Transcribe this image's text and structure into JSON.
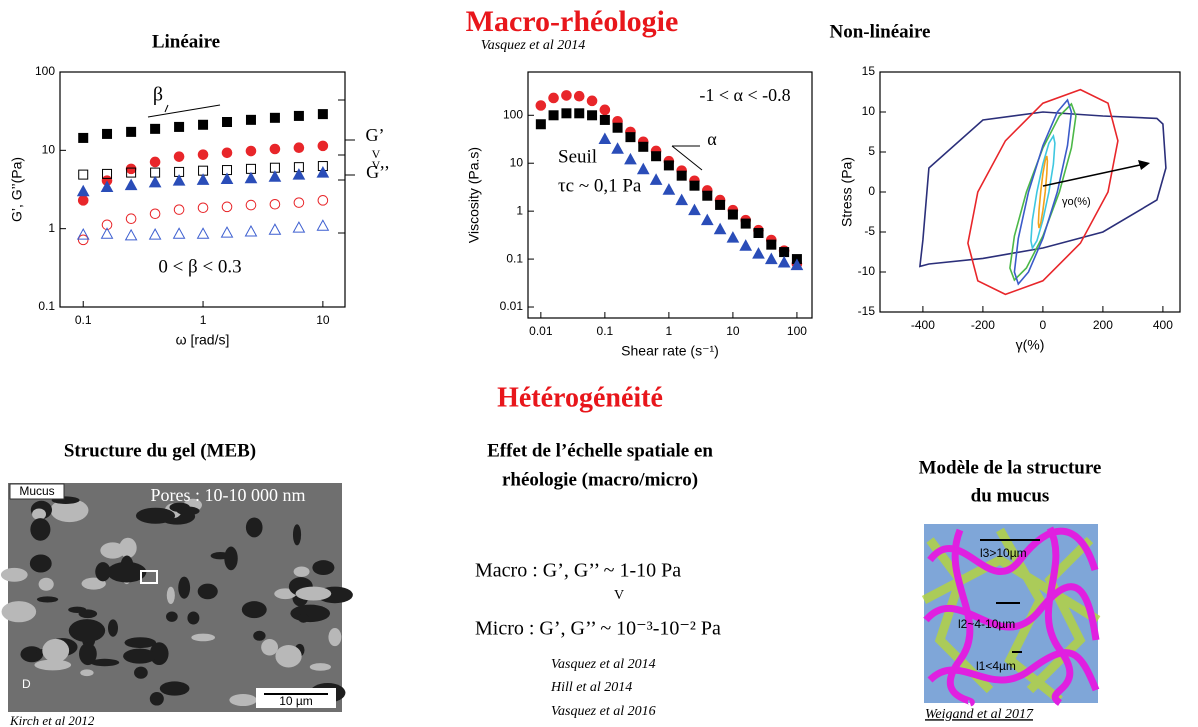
{
  "sections": [
    "Macro-rhéologie",
    "Hétérogénéité"
  ],
  "chart_data": [
    {
      "type": "scatter",
      "title": "Linéaire",
      "x_label": "ω [rad/s]",
      "y_label": "G’, G’’(Pa)",
      "log_x": true,
      "log_y": true,
      "xlim": [
        0.064,
        15.3
      ],
      "ylim": [
        0.1,
        100
      ],
      "xticks": [
        0.1,
        1,
        10
      ],
      "yticks": [
        0.1,
        1,
        10,
        100
      ],
      "x": [
        0.1,
        0.158,
        0.251,
        0.398,
        0.631,
        1,
        1.585,
        2.512,
        3.98,
        6.31,
        10
      ],
      "series": [
        {
          "color": "#000000",
          "marker": "square",
          "filled": true,
          "values": [
            14.4,
            16.2,
            17.2,
            18.8,
            19.9,
            21.2,
            23,
            24.5,
            26,
            27.5,
            29
          ]
        },
        {
          "color": "#e8262a",
          "marker": "circle",
          "filled": true,
          "values": [
            2.3,
            4.1,
            5.8,
            7.1,
            8.3,
            8.8,
            9.3,
            9.8,
            10.4,
            10.8,
            11.4
          ]
        },
        {
          "color": "#000000",
          "marker": "square",
          "filled": false,
          "values": [
            4.9,
            5,
            5.2,
            5.2,
            5.3,
            5.5,
            5.6,
            5.8,
            6,
            6.1,
            6.3
          ]
        },
        {
          "color": "#2a4db8",
          "marker": "triangle",
          "filled": true,
          "values": [
            3,
            3.4,
            3.6,
            3.9,
            4.1,
            4.2,
            4.3,
            4.4,
            4.6,
            4.9,
            5.2
          ]
        },
        {
          "color": "#e8262a",
          "marker": "circle",
          "filled": false,
          "values": [
            0.72,
            1.12,
            1.34,
            1.55,
            1.75,
            1.85,
            1.9,
            2,
            2.05,
            2.15,
            2.3
          ]
        },
        {
          "color": "#3d5fd0",
          "marker": "triangle",
          "filled": false,
          "values": [
            0.84,
            0.86,
            0.82,
            0.84,
            0.86,
            0.86,
            0.89,
            0.92,
            0.97,
            1.03,
            1.09
          ]
        }
      ],
      "annotations": [
        "β",
        "G’",
        "V",
        "V",
        "G’’",
        "0 < β < 0.3"
      ]
    },
    {
      "type": "scatter",
      "subtitle": "Vasquez et al 2014",
      "x_label": "Shear rate (s⁻¹)",
      "y_label": "Viscosity (Pa.s)",
      "log_x": true,
      "log_y": true,
      "xlim": [
        0.0063,
        172
      ],
      "ylim": [
        0.0059,
        800
      ],
      "xticks": [
        0.01,
        0.1,
        1,
        10,
        100
      ],
      "yticks": [
        0.01,
        0.1,
        1,
        10,
        100
      ],
      "x": [
        0.01,
        0.0158,
        0.0251,
        0.0398,
        0.0631,
        0.1,
        0.158,
        0.251,
        0.398,
        0.631,
        1,
        1.585,
        2.512,
        3.98,
        6.31,
        10,
        15.85,
        25.1,
        39.8,
        63.1,
        100
      ],
      "series": [
        {
          "color": "#e8262a",
          "marker": "circle",
          "filled": true,
          "values": [
            160,
            230,
            260,
            250,
            200,
            130,
            75,
            45,
            28,
            18,
            11,
            7,
            4.3,
            2.7,
            1.7,
            1.05,
            0.65,
            0.4,
            0.25,
            0.15,
            0.08
          ]
        },
        {
          "color": "#000000",
          "marker": "square",
          "filled": true,
          "values": [
            65,
            100,
            110,
            110,
            100,
            80,
            55,
            35,
            22,
            14,
            9,
            5.5,
            3.4,
            2.1,
            1.35,
            0.85,
            0.55,
            0.35,
            0.2,
            0.14,
            0.1
          ]
        },
        {
          "color": "#2a4db8",
          "marker": "triangle",
          "filled": true,
          "values": [
            null,
            null,
            null,
            null,
            null,
            32,
            20,
            12,
            7.5,
            4.5,
            2.8,
            1.7,
            1.05,
            0.65,
            0.42,
            0.28,
            0.19,
            0.13,
            0.1,
            0.085,
            0.075
          ]
        }
      ],
      "annotations": [
        "-1 < α < -0.8",
        "α",
        "Seuil",
        "τc ~ 0,1 Pa"
      ]
    },
    {
      "type": "line",
      "title": "Non-linéaire",
      "x_label": "γ(%)",
      "y_label": "Stress (Pa)",
      "xlim": [
        -543,
        457
      ],
      "ylim": [
        -15,
        15
      ],
      "xticks": [
        -400,
        -200,
        0,
        200,
        400
      ],
      "yticks": [
        -15,
        -10,
        -5,
        0,
        5,
        10,
        15
      ],
      "series": [
        {
          "color": "#2b2f7a",
          "x": [
            400,
            410,
            380,
            200,
            0,
            -200,
            -380,
            -410,
            -400,
            -380,
            -200,
            0,
            200,
            380
          ],
          "values": [
            8.5,
            3,
            -1,
            -5,
            -7,
            -8.3,
            -9,
            -9.3,
            -6,
            3,
            9,
            10,
            9.5,
            9.2
          ]
        },
        {
          "color": "#e8262a",
          "x": [
            250,
            217,
            125,
            0,
            -125,
            -217,
            -250,
            -217,
            -125,
            0,
            125,
            217
          ],
          "values": [
            6.4,
            11.1,
            12.8,
            11.1,
            6.4,
            0,
            -6.4,
            -11.1,
            -12.8,
            -11.1,
            -6.4,
            0
          ]
        },
        {
          "color": "#4cb848",
          "x": [
            110,
            95,
            55,
            0,
            -55,
            -95,
            -110,
            -95,
            -55,
            0,
            55,
            95
          ],
          "values": [
            9.5,
            11,
            9.5,
            5.5,
            0,
            -5.5,
            -9.5,
            -11,
            -9.5,
            -5.5,
            0,
            5.5
          ]
        },
        {
          "color": "#3b5bc9",
          "x": [
            95,
            82,
            48,
            0,
            -48,
            -82,
            -95,
            -82,
            -48,
            0,
            48,
            82
          ],
          "values": [
            10,
            11.5,
            10,
            5.8,
            0,
            -5.8,
            -10,
            -11.5,
            -10,
            -5.8,
            0,
            5.8
          ]
        },
        {
          "color": "#3ec7e0",
          "x": [
            40,
            35,
            20,
            0,
            -20,
            -35,
            -40,
            -35,
            -20,
            0,
            20,
            35
          ],
          "values": [
            6.1,
            7,
            6.1,
            3.5,
            0,
            -3.5,
            -6.1,
            -7,
            -6.1,
            -3.5,
            0,
            3.5
          ]
        },
        {
          "color": "#f2a31b",
          "x": [
            15,
            13,
            7.5,
            0,
            -7.5,
            -13,
            -15,
            -13,
            -7.5,
            0,
            7.5,
            13
          ],
          "values": [
            3.9,
            4.5,
            3.9,
            2.3,
            0,
            -2.3,
            -3.9,
            -4.5,
            -3.9,
            -2.3,
            0,
            2.3
          ]
        }
      ],
      "annotations": [
        "γo(%)"
      ]
    }
  ],
  "bottom": {
    "sem": {
      "title": "Structure du gel (MEB)",
      "label": "Mucus",
      "pores": "Pores : 10-10 000 nm",
      "panel": "D",
      "scale": "10 µm",
      "reference": "Kirch et al 2012"
    },
    "scale": {
      "title": [
        "Effet de l’échelle spatiale en",
        "rhéologie (macro/micro)"
      ],
      "macro": "Macro : G’, G’’ ~ 1-10 Pa",
      "compare": "V",
      "micro": "Micro : G’, G’’ ~ 10⁻³-10⁻² Pa",
      "references": [
        "Vasquez et al 2014",
        "Hill et al 2014",
        "Vasquez et al 2016"
      ]
    },
    "model": {
      "title": [
        "Modèle de la structure",
        "du mucus"
      ],
      "labels": [
        "l3>10µm",
        "l2~4-10µm",
        "l1<4µm"
      ],
      "reference": "Weigand et al 2017"
    }
  }
}
